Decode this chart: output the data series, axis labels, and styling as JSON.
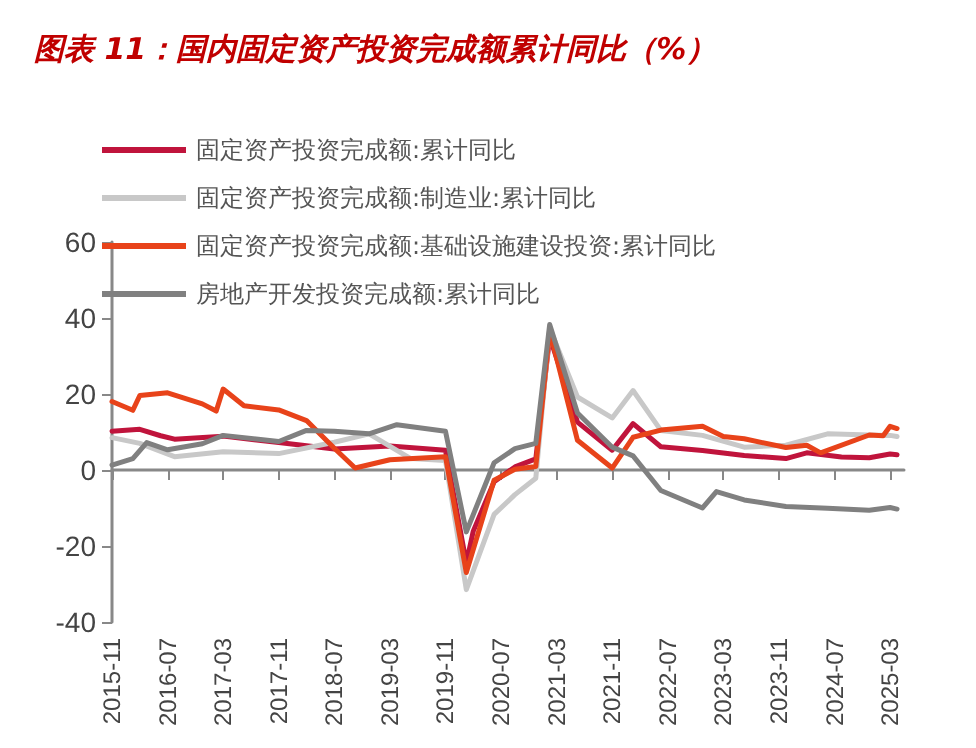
{
  "chart_data": {
    "type": "line",
    "title": "图表 11：国内固定资产投资完成额累计同比（%）",
    "xlim": [
      "2015-11",
      "2025-05"
    ],
    "xticks": [
      "2015-11",
      "2016-07",
      "2017-03",
      "2017-11",
      "2018-07",
      "2019-03",
      "2019-11",
      "2020-07",
      "2021-03",
      "2021-11",
      "2022-07",
      "2023-03",
      "2023-11",
      "2024-07",
      "2025-03"
    ],
    "ylim": [
      -40,
      60
    ],
    "yticks": [
      -40,
      -20,
      0,
      20,
      40,
      60
    ],
    "legend": "top left",
    "marker": "none",
    "line_style": "solid",
    "series": [
      {
        "name": "固定资产投资完成额:累计同比",
        "color": "#c0143c",
        "x": [
          "2015-11",
          "2016-03",
          "2016-06",
          "2016-08",
          "2017-03",
          "2017-11",
          "2018-07",
          "2019-03",
          "2019-11",
          "2020-02",
          "2020-03",
          "2020-06",
          "2020-09",
          "2020-12",
          "2021-02",
          "2021-06",
          "2021-11",
          "2022-02",
          "2022-06",
          "2022-12",
          "2023-06",
          "2023-12",
          "2024-03",
          "2024-08",
          "2024-12",
          "2025-03",
          "2025-04"
        ],
        "values": [
          10.2,
          10.7,
          9,
          8.1,
          8.9,
          7.2,
          5.5,
          6.3,
          5.2,
          -24.5,
          -16.1,
          -3.1,
          0.8,
          2.9,
          35,
          12.6,
          5.2,
          12.2,
          6.1,
          5.1,
          3.8,
          3,
          4.5,
          3.4,
          3.2,
          4.2,
          4
        ]
      },
      {
        "name": "固定资产投资完成额:制造业:累计同比",
        "color": "#c8c8c8",
        "x": [
          "2015-11",
          "2016-03",
          "2016-08",
          "2017-03",
          "2017-11",
          "2018-07",
          "2018-12",
          "2019-06",
          "2019-11",
          "2020-02",
          "2020-06",
          "2020-09",
          "2020-12",
          "2021-02",
          "2021-06",
          "2021-11",
          "2022-02",
          "2022-06",
          "2022-12",
          "2023-06",
          "2023-12",
          "2024-06",
          "2024-12",
          "2025-03",
          "2025-04"
        ],
        "values": [
          8.5,
          7,
          3.5,
          4.8,
          4.3,
          7.3,
          9.5,
          3,
          2.5,
          -31.5,
          -11.7,
          -6.5,
          -2.2,
          37.3,
          19.2,
          13.7,
          20.9,
          10.4,
          9.1,
          6,
          6.5,
          9.5,
          9.2,
          9.1,
          8.8
        ]
      },
      {
        "name": "固定资产投资完成额:基础设施建设投资:累计同比",
        "color": "#e8431a",
        "x": [
          "2015-11",
          "2016-02",
          "2016-03",
          "2016-07",
          "2016-12",
          "2017-02",
          "2017-03",
          "2017-06",
          "2017-11",
          "2018-03",
          "2018-07",
          "2018-10",
          "2019-03",
          "2019-11",
          "2020-02",
          "2020-06",
          "2020-09",
          "2020-12",
          "2021-02",
          "2021-06",
          "2021-11",
          "2022-02",
          "2022-06",
          "2022-12",
          "2023-03",
          "2023-06",
          "2023-12",
          "2024-03",
          "2024-05",
          "2024-12",
          "2025-02",
          "2025-03",
          "2025-04"
        ],
        "values": [
          18,
          15.7,
          19.6,
          20.3,
          17.4,
          15.5,
          21.3,
          16.9,
          15.8,
          13,
          5.7,
          0.5,
          2.7,
          3.5,
          -27,
          -2.7,
          0.2,
          0.9,
          36.6,
          7.8,
          0.5,
          8.6,
          10.5,
          11.5,
          8.8,
          8.2,
          5.9,
          6.5,
          4.5,
          9.2,
          9,
          11.5,
          10.9
        ]
      },
      {
        "name": "房地产开发投资完成额:累计同比",
        "color": "#808080",
        "x": [
          "2015-11",
          "2016-02",
          "2016-04",
          "2016-07",
          "2016-12",
          "2017-03",
          "2017-11",
          "2018-03",
          "2018-07",
          "2018-12",
          "2019-04",
          "2019-11",
          "2020-02",
          "2020-06",
          "2020-09",
          "2020-12",
          "2021-02",
          "2021-06",
          "2021-11",
          "2022-02",
          "2022-06",
          "2022-12",
          "2023-02",
          "2023-06",
          "2023-12",
          "2024-06",
          "2024-12",
          "2025-03",
          "2025-04"
        ],
        "values": [
          1.3,
          3,
          7.2,
          5.3,
          6.9,
          9.1,
          7.5,
          10.4,
          10.2,
          9.5,
          11.9,
          10.2,
          -16.3,
          1.9,
          5.6,
          7,
          38.3,
          15,
          6,
          3.7,
          -5.4,
          -10,
          -5.7,
          -7.9,
          -9.6,
          -10.1,
          -10.6,
          -9.9,
          -10.3
        ]
      }
    ]
  }
}
